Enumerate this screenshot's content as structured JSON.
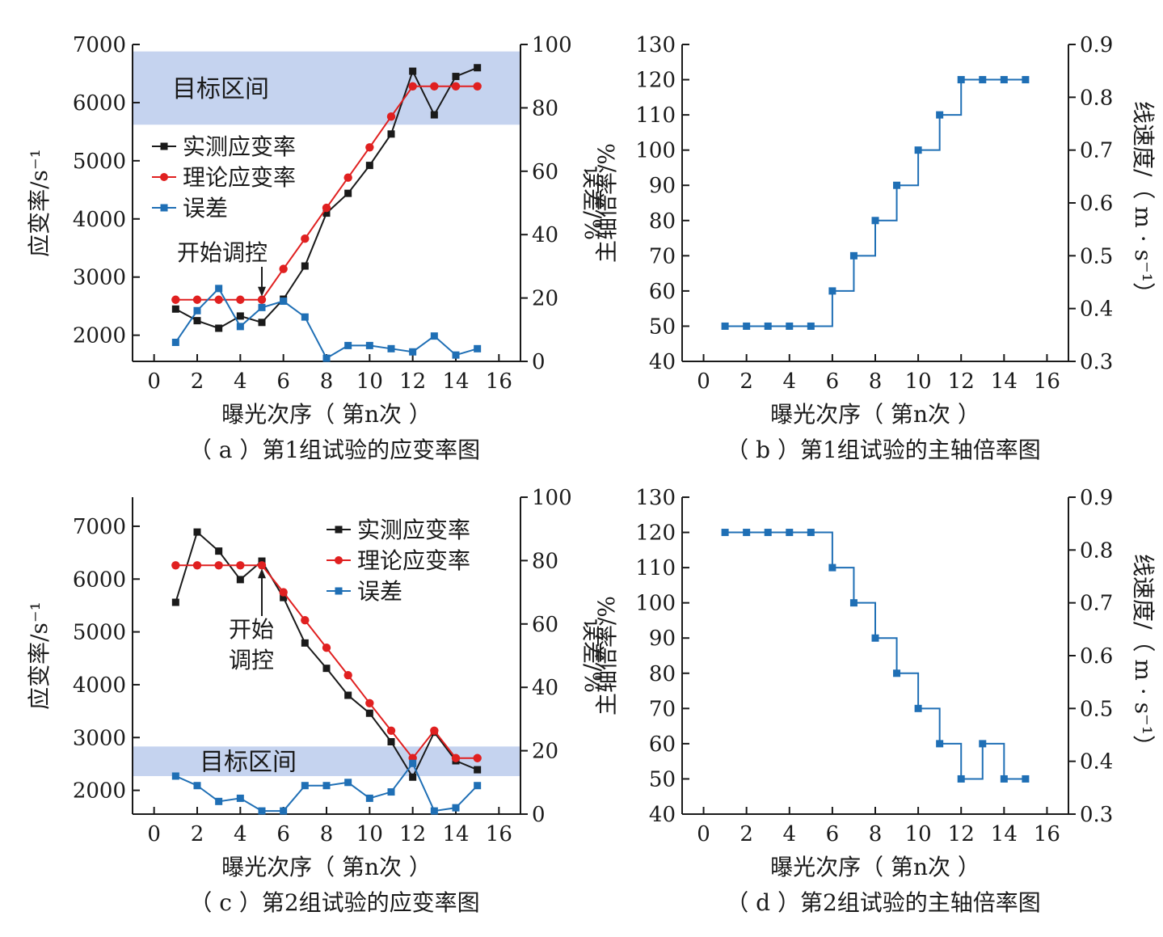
{
  "colors": {
    "measured": "#1a1a1a",
    "theory": "#e02020",
    "error": "#1f6fb5",
    "band": "#c5d3ef",
    "axis": "#1a1a1a"
  },
  "charts": {
    "a": {
      "caption": "（ a ）第1组试验的应变率图",
      "xlabel": "曝光次序（ 第n次 ）",
      "ylabel_left": "应变率/s⁻¹",
      "ylabel_right": "误差/%",
      "band_label": "目标区间",
      "annotation": "开始调控",
      "legend": [
        "实测应变率",
        "理论应变率",
        "误差"
      ]
    },
    "b": {
      "caption": "（ b ）第1组试验的主轴倍率图",
      "xlabel": "曝光次序（ 第n次 ）",
      "ylabel_left": "主轴倍率/%",
      "ylabel_right": "线速度/（ m · s⁻¹）"
    },
    "c": {
      "caption": "（ c ）第2组试验的应变率图",
      "xlabel": "曝光次序（ 第n次 ）",
      "ylabel_left": "应变率/s⁻¹",
      "ylabel_right": "误差/%",
      "band_label": "目标区间",
      "annotation_line1": "开始",
      "annotation_line2": "调控",
      "legend": [
        "实测应变率",
        "理论应变率",
        "误差"
      ]
    },
    "d": {
      "caption": "（ d ）第2组试验的主轴倍率图",
      "xlabel": "曝光次序（ 第n次 ）",
      "ylabel_left": "主轴倍率/%",
      "ylabel_right": "线速度/（ m · s⁻¹）"
    }
  },
  "chart_data": [
    {
      "panel": "a",
      "type": "line",
      "x": [
        1,
        2,
        3,
        4,
        5,
        6,
        7,
        8,
        9,
        10,
        11,
        12,
        13,
        14,
        15
      ],
      "xlim": [
        -1,
        17
      ],
      "xticks": [
        0,
        2,
        4,
        6,
        8,
        10,
        12,
        14,
        16
      ],
      "ylim_left": [
        1550,
        7000
      ],
      "yticks_left": [
        2000,
        3000,
        4000,
        5000,
        6000,
        7000
      ],
      "ylim_right": [
        0,
        100
      ],
      "yticks_right": [
        0,
        20,
        40,
        60,
        80,
        100
      ],
      "target_band": [
        5620,
        6880
      ],
      "annotation_x": 5,
      "series": [
        {
          "name": "实测应变率",
          "axis": "left",
          "marker": "square",
          "values": [
            2450,
            2250,
            2120,
            2330,
            2220,
            2620,
            3190,
            4100,
            4440,
            4920,
            5460,
            6540,
            5790,
            6450,
            6600
          ]
        },
        {
          "name": "理论应变率",
          "axis": "left",
          "marker": "circle",
          "values": [
            2610,
            2610,
            2610,
            2610,
            2610,
            3140,
            3660,
            4190,
            4710,
            5230,
            5760,
            6280,
            6280,
            6280,
            6280
          ]
        },
        {
          "name": "误差",
          "axis": "right",
          "marker": "square",
          "values": [
            6,
            16,
            23,
            11,
            17,
            19,
            14,
            1,
            5,
            5,
            4,
            3,
            8,
            2,
            4
          ]
        }
      ]
    },
    {
      "panel": "b",
      "type": "line",
      "step": true,
      "x": [
        1,
        2,
        3,
        4,
        5,
        6,
        7,
        8,
        9,
        10,
        11,
        12,
        13,
        14,
        15
      ],
      "xlim": [
        -1,
        17
      ],
      "xticks": [
        0,
        2,
        4,
        6,
        8,
        10,
        12,
        14,
        16
      ],
      "ylim_left": [
        40,
        130
      ],
      "yticks_left": [
        40,
        50,
        60,
        70,
        80,
        90,
        100,
        110,
        120,
        130
      ],
      "ylim_right": [
        0.3,
        0.9
      ],
      "yticks_right": [
        0.3,
        0.4,
        0.5,
        0.6,
        0.7,
        0.8,
        0.9
      ],
      "series": [
        {
          "name": "",
          "axis": "left",
          "marker": "square",
          "values": [
            50,
            50,
            50,
            50,
            50,
            60,
            70,
            80,
            90,
            100,
            110,
            120,
            120,
            120,
            120
          ]
        }
      ]
    },
    {
      "panel": "c",
      "type": "line",
      "x": [
        1,
        2,
        3,
        4,
        5,
        6,
        7,
        8,
        9,
        10,
        11,
        12,
        13,
        14,
        15
      ],
      "xlim": [
        -1,
        17
      ],
      "xticks": [
        0,
        2,
        4,
        6,
        8,
        10,
        12,
        14,
        16
      ],
      "ylim_left": [
        1550,
        7550
      ],
      "yticks_left": [
        2000,
        3000,
        4000,
        5000,
        6000,
        7000
      ],
      "ylim_right": [
        0,
        100
      ],
      "yticks_right": [
        0,
        20,
        40,
        60,
        80,
        100
      ],
      "target_band": [
        2270,
        2830
      ],
      "annotation_x": 5,
      "series": [
        {
          "name": "实测应变率",
          "axis": "left",
          "marker": "square",
          "values": [
            5560,
            6890,
            6530,
            5990,
            6340,
            5650,
            4790,
            4310,
            3800,
            3460,
            2920,
            2250,
            3100,
            2560,
            2390
          ]
        },
        {
          "name": "理论应变率",
          "axis": "left",
          "marker": "circle",
          "values": [
            6260,
            6260,
            6260,
            6260,
            6260,
            5750,
            5220,
            4700,
            4180,
            3650,
            3130,
            2610,
            3130,
            2610,
            2610
          ]
        },
        {
          "name": "误差",
          "axis": "right",
          "marker": "square",
          "values": [
            12,
            9,
            4,
            5,
            1,
            1,
            9,
            9,
            10,
            5,
            7,
            16,
            1,
            2,
            9
          ]
        }
      ]
    },
    {
      "panel": "d",
      "type": "line",
      "step": true,
      "x": [
        1,
        2,
        3,
        4,
        5,
        6,
        7,
        8,
        9,
        10,
        11,
        12,
        13,
        14,
        15
      ],
      "xlim": [
        -1,
        17
      ],
      "xticks": [
        0,
        2,
        4,
        6,
        8,
        10,
        12,
        14,
        16
      ],
      "ylim_left": [
        40,
        130
      ],
      "yticks_left": [
        40,
        50,
        60,
        70,
        80,
        90,
        100,
        110,
        120,
        130
      ],
      "ylim_right": [
        0.3,
        0.9
      ],
      "yticks_right": [
        0.3,
        0.4,
        0.5,
        0.6,
        0.7,
        0.8,
        0.9
      ],
      "series": [
        {
          "name": "",
          "axis": "left",
          "marker": "square",
          "values": [
            120,
            120,
            120,
            120,
            120,
            110,
            100,
            90,
            80,
            70,
            60,
            50,
            60,
            50,
            50
          ]
        }
      ]
    }
  ]
}
